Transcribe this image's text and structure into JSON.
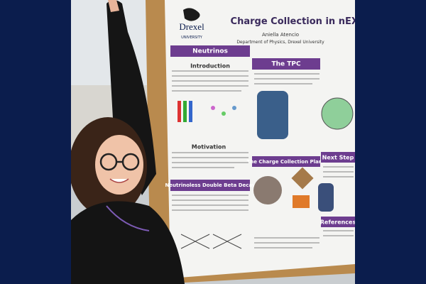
{
  "poster": {
    "title": "Charge Collection in nEXO",
    "author": "Aniella Atencio",
    "affiliation": "Department of Physics, Drexel University",
    "logo": {
      "name": "Drexel",
      "subtitle": "UNIVERSITY"
    },
    "sections": [
      "Neutrinos",
      "Introduction",
      "The TPC",
      "Motivation",
      "Neutrinoless Double Beta Decay",
      "The Charge Collection Plane",
      "Next Step",
      "References"
    ]
  }
}
